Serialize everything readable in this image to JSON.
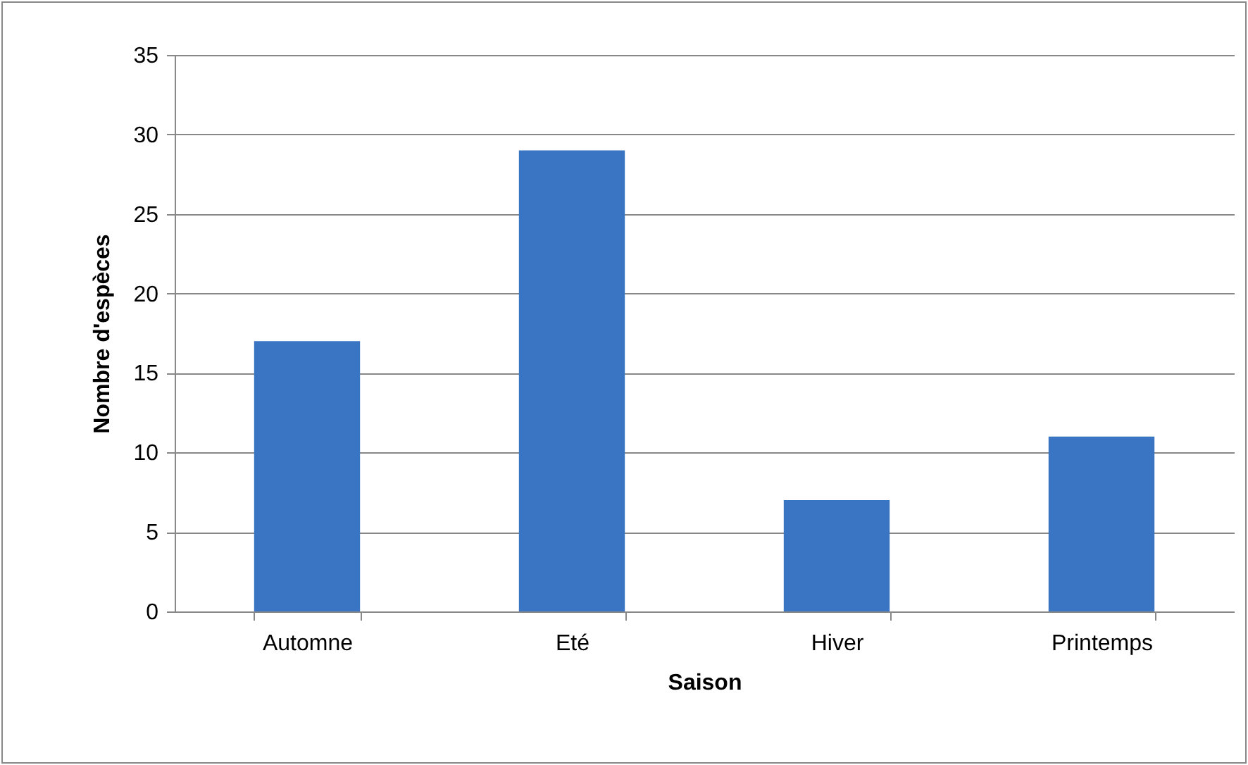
{
  "chart_data": {
    "type": "bar",
    "xlabel": "Saison",
    "ylabel": "Nombre d'espèces",
    "categories": [
      "Automne",
      "Eté",
      "Hiver",
      "Printemps"
    ],
    "values": [
      17,
      29,
      7,
      11
    ],
    "color": "#3a75c4",
    "ylim": [
      0,
      35
    ],
    "yticks": [
      0,
      5,
      10,
      15,
      20,
      25,
      30,
      35
    ],
    "grid": "y"
  }
}
